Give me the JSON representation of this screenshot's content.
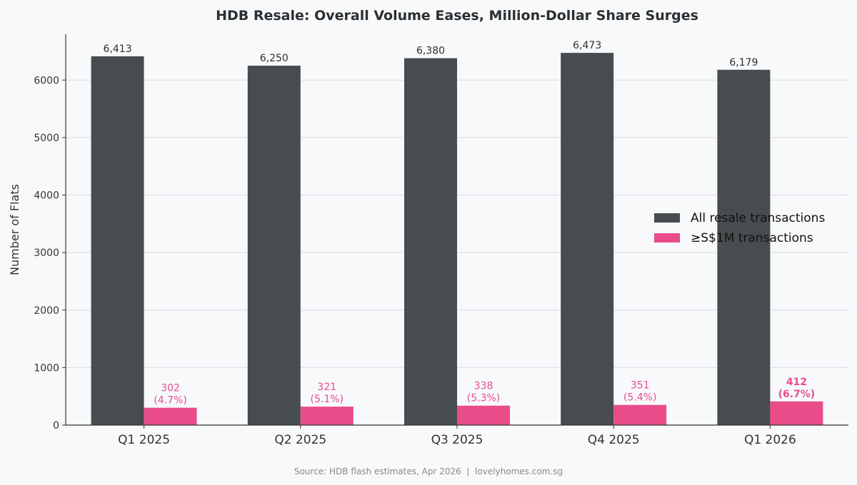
{
  "chart_data": {
    "type": "bar",
    "title": "HDB Resale: Overall Volume Eases, Million-Dollar Share Surges",
    "xlabel": "",
    "ylabel": "Number of Flats",
    "ylim": [
      0,
      6797
    ],
    "yticks": [
      0,
      1000,
      2000,
      3000,
      4000,
      5000,
      6000
    ],
    "grid": "horizontal",
    "legend_position": "center-right",
    "categories": [
      "Q1 2025",
      "Q2 2025",
      "Q3 2025",
      "Q4 2025",
      "Q1 2026"
    ],
    "series": [
      {
        "name": "All resale transactions",
        "color": "#474d4e",
        "values": [
          6413,
          6250,
          6380,
          6473,
          6179
        ],
        "labels": [
          "6,413",
          "6,250",
          "6,380",
          "6,473",
          "6,179"
        ]
      },
      {
        "name": "≥S$1M transactions",
        "color": "#e84d8a",
        "values": [
          302,
          321,
          338,
          351,
          412
        ],
        "labels": [
          "302\n(4.7%)",
          "321\n(5.1%)",
          "338\n(5.3%)",
          "351\n(5.4%)",
          "412\n(6.7%)"
        ],
        "highlight_last": true
      }
    ],
    "footer": "Source: HDB flash estimates, Apr 2026  |  lovelyhomes.com.sg"
  }
}
